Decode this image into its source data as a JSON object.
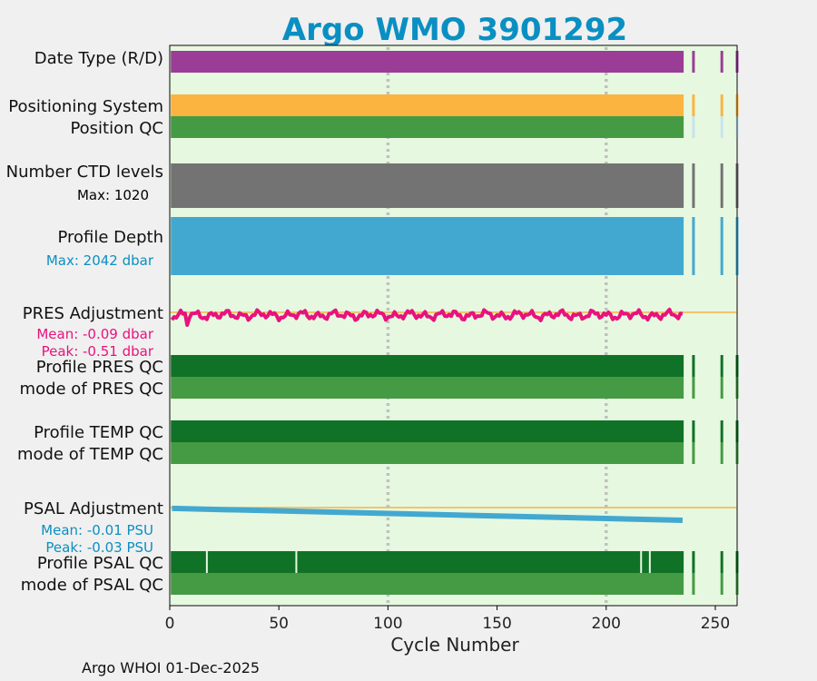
{
  "chart_data": {
    "type": "qc-summary-timeline",
    "title": "Argo WMO 3901292",
    "xlabel": "Cycle Number",
    "xlim": [
      0,
      260
    ],
    "xticks": [
      0,
      50,
      100,
      150,
      200,
      250
    ],
    "footer": "Argo WHOI 01-Dec-2025",
    "colors": {
      "title": "#0a8fc2",
      "background": "#e6f8e0",
      "date_type": "#9b3d96",
      "positioning": "#fcb441",
      "position_qc": "#459a44",
      "position_qc_missing": "#c8e4ec",
      "ctd": "#737373",
      "depth": "#43a8d0",
      "pres_adj": "#e8127d",
      "qc_dark": "#107226",
      "qc_mid": "#459a44",
      "psal_adj": "#43a8d0",
      "zero_line": "#f5b445",
      "grid": "#c0c0c0"
    },
    "main_cycles": [
      1,
      235
    ],
    "extra_cycles": [
      240,
      253,
      260
    ],
    "rows": [
      {
        "key": "date_type",
        "label": "Date Type (R/D)"
      },
      {
        "key": "positioning",
        "label": "Positioning System"
      },
      {
        "key": "position_qc",
        "label": "Position QC"
      },
      {
        "key": "ctd",
        "label": "Number CTD levels",
        "note": "Max: 1020"
      },
      {
        "key": "depth",
        "label": "Profile Depth",
        "note": "Max: 2042 dbar"
      },
      {
        "key": "pres_adj",
        "label": "PRES Adjustment",
        "notes": [
          "Mean: -0.09 dbar",
          "Peak: -0.51 dbar"
        ]
      },
      {
        "key": "pres_qc",
        "label": "Profile PRES QC"
      },
      {
        "key": "pres_mode",
        "label": "mode of PRES QC"
      },
      {
        "key": "temp_qc",
        "label": "Profile TEMP QC"
      },
      {
        "key": "temp_mode",
        "label": "mode of TEMP QC"
      },
      {
        "key": "psal_adj",
        "label": "PSAL Adjustment",
        "notes": [
          "Mean: -0.01 PSU",
          "Peak: -0.03 PSU"
        ]
      },
      {
        "key": "psal_qc",
        "label": "Profile PSAL QC"
      },
      {
        "key": "psal_mode",
        "label": "mode of PSAL QC"
      }
    ],
    "psal_qc_gaps": [
      17,
      58,
      216,
      220
    ],
    "psal_adjustment_trend": {
      "cycles": [
        1,
        235
      ],
      "values": [
        -0.002,
        -0.03
      ]
    },
    "pres_adjustment_mean": -0.09
  }
}
